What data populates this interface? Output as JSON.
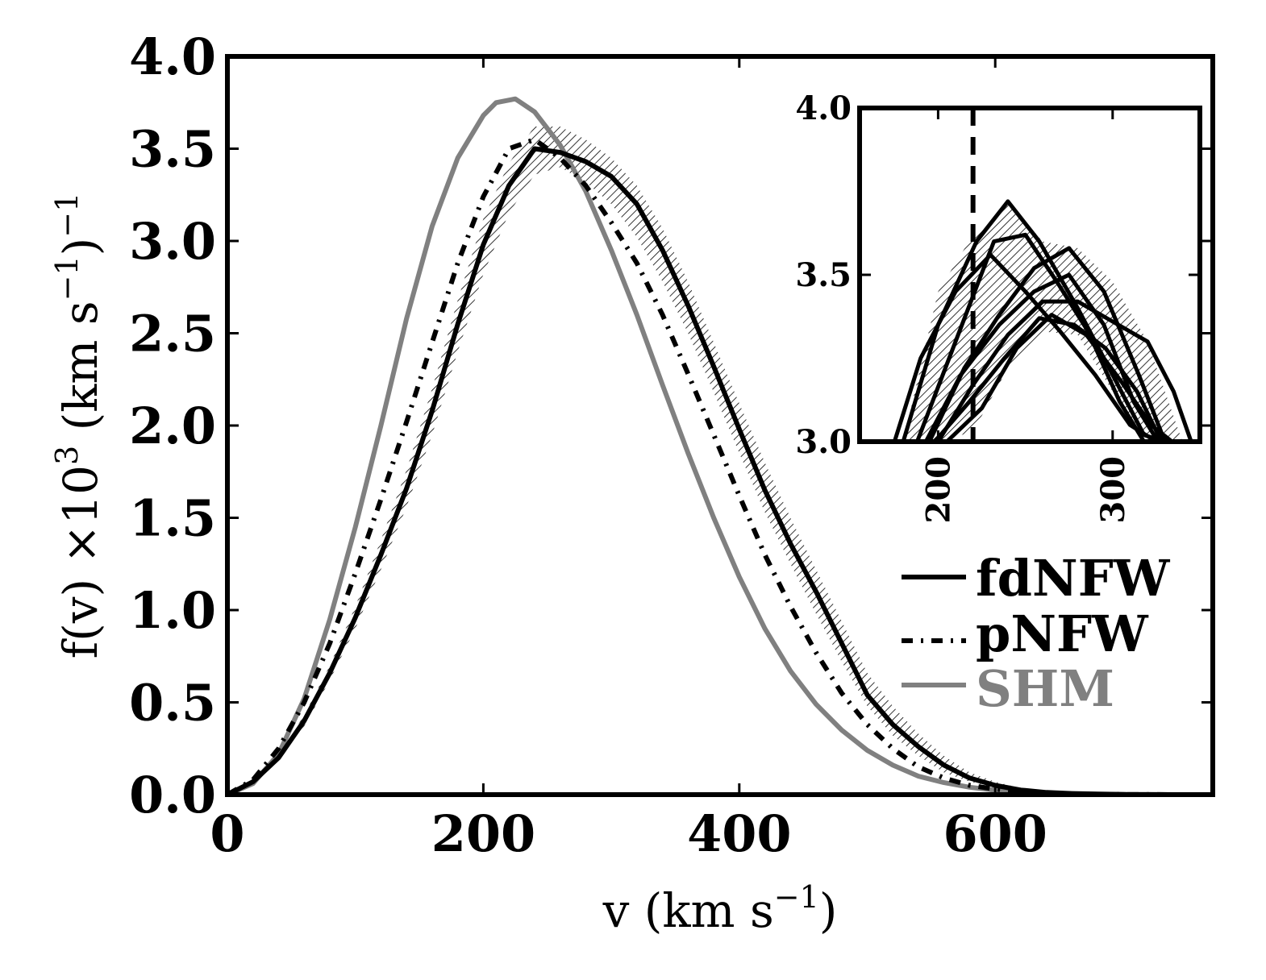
{
  "chart_data": [
    {
      "type": "line",
      "xlabel": "v (km s",
      "xlabel_sup": "−1",
      "xlabel_tail": ")",
      "ylabel": "f(v)  ×10",
      "ylabel_sup1": "3",
      "ylabel_mid": "  (km s",
      "ylabel_sup2": "−1",
      "ylabel_tail": ")",
      "ylabel_sup3": "−1",
      "xlim": [
        0,
        770
      ],
      "ylim": [
        0,
        4.0
      ],
      "xticks": [
        0,
        200,
        400,
        600
      ],
      "xtick_labels": [
        "0",
        "200",
        "400",
        "600"
      ],
      "yticks": [
        0,
        0.5,
        1.0,
        1.5,
        2.0,
        2.5,
        3.0,
        3.5,
        4.0
      ],
      "ytick_labels": [
        "0.0",
        "0.5",
        "1.0",
        "1.5",
        "2.0",
        "2.5",
        "3.0",
        "3.5",
        "4.0"
      ],
      "legend_position": "right",
      "grid": false,
      "series": [
        {
          "name": "fdNFW",
          "color": "#000000",
          "style": "solid",
          "x": [
            0,
            20,
            40,
            60,
            80,
            100,
            120,
            140,
            160,
            180,
            200,
            220,
            240,
            260,
            280,
            300,
            320,
            340,
            360,
            380,
            400,
            420,
            440,
            460,
            480,
            500,
            520,
            540,
            560,
            580,
            600,
            620,
            640,
            660,
            680,
            700,
            720,
            740,
            770
          ],
          "y": [
            0.0,
            0.07,
            0.2,
            0.4,
            0.66,
            0.96,
            1.3,
            1.66,
            2.08,
            2.55,
            2.98,
            3.3,
            3.5,
            3.48,
            3.43,
            3.35,
            3.2,
            2.95,
            2.65,
            2.32,
            1.98,
            1.65,
            1.36,
            1.1,
            0.82,
            0.54,
            0.38,
            0.26,
            0.16,
            0.09,
            0.05,
            0.025,
            0.012,
            0.006,
            0.003,
            0.001,
            0.0005,
            0.0002,
            0.0
          ],
          "band_lower": [
            0.0,
            0.06,
            0.18,
            0.37,
            0.62,
            0.9,
            1.22,
            1.56,
            1.95,
            2.4,
            2.82,
            3.15,
            3.36,
            3.4,
            3.32,
            3.2,
            3.02,
            2.78,
            2.5,
            2.18,
            1.85,
            1.53,
            1.25,
            0.98,
            0.72,
            0.48,
            0.32,
            0.21,
            0.12,
            0.07,
            0.035,
            0.018,
            0.008,
            0.004,
            0.002,
            0.0008,
            0.0003,
            0.0001,
            0.0
          ],
          "band_upper": [
            0.0,
            0.08,
            0.22,
            0.43,
            0.7,
            1.02,
            1.38,
            1.76,
            2.2,
            2.68,
            3.12,
            3.42,
            3.62,
            3.62,
            3.55,
            3.45,
            3.3,
            3.07,
            2.78,
            2.45,
            2.12,
            1.8,
            1.5,
            1.22,
            0.94,
            0.66,
            0.48,
            0.33,
            0.21,
            0.12,
            0.07,
            0.035,
            0.017,
            0.008,
            0.004,
            0.0015,
            0.0007,
            0.0003,
            0.0
          ]
        },
        {
          "name": "pNFW",
          "color": "#000000",
          "style": "dashdot",
          "x": [
            0,
            20,
            40,
            60,
            80,
            100,
            120,
            140,
            160,
            180,
            200,
            220,
            240,
            260,
            280,
            300,
            320,
            340,
            360,
            380,
            400,
            420,
            440,
            460,
            480,
            500,
            520,
            540,
            560,
            580,
            600,
            620,
            640,
            660,
            680,
            700,
            720,
            740,
            770
          ],
          "y": [
            0.0,
            0.08,
            0.25,
            0.5,
            0.82,
            1.2,
            1.6,
            2.02,
            2.45,
            2.88,
            3.24,
            3.5,
            3.55,
            3.45,
            3.3,
            3.1,
            2.88,
            2.6,
            2.28,
            1.95,
            1.62,
            1.3,
            1.02,
            0.77,
            0.55,
            0.38,
            0.25,
            0.15,
            0.09,
            0.05,
            0.03,
            0.015,
            0.008,
            0.004,
            0.002,
            0.001,
            0.0005,
            0.0002,
            0.0
          ]
        },
        {
          "name": "SHM",
          "color": "#808080",
          "style": "solid",
          "x": [
            0,
            20,
            40,
            60,
            80,
            100,
            120,
            140,
            160,
            180,
            200,
            210,
            225,
            240,
            260,
            280,
            300,
            320,
            340,
            360,
            380,
            400,
            420,
            440,
            460,
            480,
            500,
            520,
            540,
            560,
            580,
            600,
            620,
            640,
            660,
            680,
            700,
            720,
            740,
            770
          ],
          "y": [
            0.0,
            0.06,
            0.22,
            0.52,
            0.95,
            1.45,
            2.0,
            2.58,
            3.08,
            3.45,
            3.68,
            3.75,
            3.77,
            3.7,
            3.52,
            3.27,
            2.95,
            2.6,
            2.22,
            1.85,
            1.5,
            1.18,
            0.9,
            0.67,
            0.49,
            0.35,
            0.24,
            0.16,
            0.1,
            0.065,
            0.04,
            0.024,
            0.014,
            0.008,
            0.004,
            0.002,
            0.001,
            0.0005,
            0.0002,
            0.0
          ]
        }
      ]
    },
    {
      "type": "line",
      "xlim": [
        155,
        350
      ],
      "ylim": [
        3.0,
        4.0
      ],
      "xticks": [
        200,
        300
      ],
      "xtick_labels": [
        "200",
        "300"
      ],
      "yticks": [
        3.0,
        3.5,
        4.0
      ],
      "ytick_labels": [
        "3.0",
        "3.5",
        "4.0"
      ],
      "vline_x": 220,
      "band": {
        "x": [
          180,
          200,
          220,
          240,
          260,
          280,
          300,
          320,
          340
        ],
        "lower": [
          3.0,
          3.0,
          3.03,
          3.22,
          3.33,
          3.32,
          3.15,
          3.0,
          3.0
        ],
        "upper": [
          3.0,
          3.45,
          3.62,
          3.72,
          3.6,
          3.58,
          3.48,
          3.3,
          3.0
        ]
      },
      "series": [
        {
          "x": [
            175,
            190,
            210,
            230,
            250,
            270,
            290,
            310,
            325
          ],
          "y": [
            3.0,
            3.25,
            3.45,
            3.56,
            3.45,
            3.33,
            3.2,
            3.05,
            3.0
          ]
        },
        {
          "x": [
            180,
            200,
            222,
            240,
            258,
            280,
            300,
            318,
            330
          ],
          "y": [
            3.0,
            3.35,
            3.6,
            3.72,
            3.6,
            3.4,
            3.2,
            3.02,
            3.0
          ]
        },
        {
          "x": [
            188,
            210,
            232,
            250,
            268,
            286,
            304,
            318,
            328
          ],
          "y": [
            3.0,
            3.3,
            3.6,
            3.62,
            3.48,
            3.33,
            3.12,
            3.0,
            3.0
          ]
        },
        {
          "x": [
            195,
            215,
            235,
            255,
            275,
            295,
            315,
            330,
            340
          ],
          "y": [
            3.0,
            3.22,
            3.38,
            3.52,
            3.58,
            3.45,
            3.2,
            3.0,
            3.0
          ]
        },
        {
          "x": [
            200,
            220,
            240,
            260,
            280,
            300,
            320,
            335,
            345
          ],
          "y": [
            3.0,
            3.17,
            3.32,
            3.42,
            3.42,
            3.36,
            3.3,
            3.15,
            3.0
          ]
        },
        {
          "x": [
            198,
            218,
            238,
            258,
            278,
            296,
            314,
            328
          ],
          "y": [
            3.0,
            3.12,
            3.25,
            3.37,
            3.35,
            3.28,
            3.15,
            3.0
          ]
        },
        {
          "x": [
            193,
            213,
            235,
            255,
            275,
            295,
            312,
            326
          ],
          "y": [
            3.0,
            3.2,
            3.35,
            3.45,
            3.5,
            3.35,
            3.12,
            3.0
          ]
        },
        {
          "x": [
            205,
            225,
            245,
            265,
            285,
            305,
            322,
            334
          ],
          "y": [
            3.0,
            3.1,
            3.28,
            3.38,
            3.32,
            3.18,
            3.05,
            3.0
          ]
        }
      ]
    }
  ],
  "legend": {
    "items": [
      {
        "label": "fdNFW",
        "color": "#000000",
        "style": "solid"
      },
      {
        "label": "pNFW",
        "color": "#000000",
        "style": "dashdot"
      },
      {
        "label": "SHM",
        "color": "#808080",
        "style": "solid"
      }
    ]
  }
}
